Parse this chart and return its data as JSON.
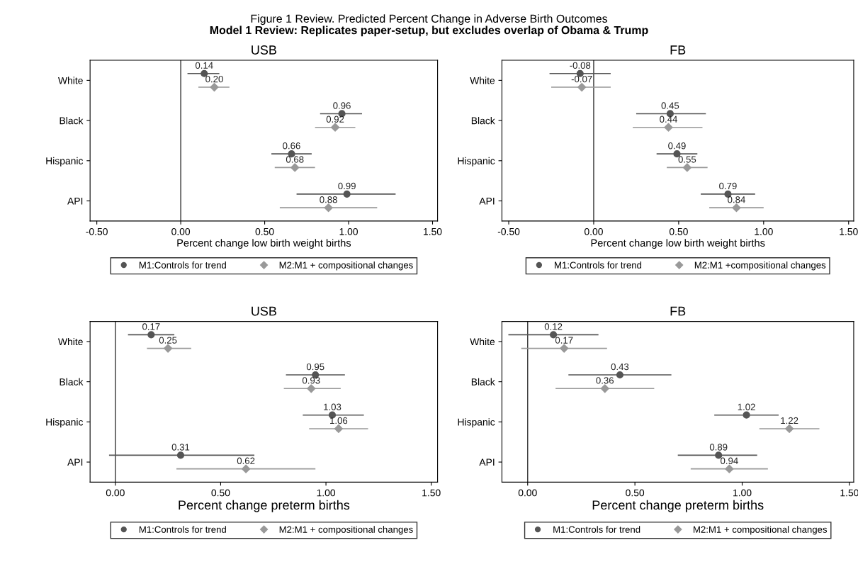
{
  "chart_data": [
    {
      "type": "scatter",
      "orientation": "horizontal",
      "title": "USB",
      "xlabel": "Percent change low birth weight births",
      "annotations": [
        "Figure 1 Review. Predicted Percent Change in Adverse Birth Outcomes",
        "Model 1 Review: Replicates paper-setup, but excludes overlap of Obama & Trump"
      ],
      "categories": [
        "White",
        "Black",
        "Hispanic",
        "API"
      ],
      "xlim": [
        -0.54,
        1.53
      ],
      "xticks": [
        {
          "value": -0.5,
          "label": "-0.50"
        },
        {
          "value": 0,
          "label": "0.00"
        },
        {
          "value": 0.5,
          "label": "0.50"
        },
        {
          "value": 1,
          "label": "1.00"
        },
        {
          "value": 1.5,
          "label": "1.50"
        }
      ],
      "ref_lines": [
        {
          "axis": "x",
          "value": 0,
          "color": "#333333"
        }
      ],
      "legend": "bottom",
      "grid": false,
      "series": [
        {
          "name": "M1:Controls for trend",
          "color": "#555555",
          "marker": "circle",
          "values": [
            0.14,
            0.96,
            0.66,
            0.99
          ],
          "value_labels": [
            "0.14",
            "0.96",
            "0.66",
            "0.99"
          ],
          "errors": [
            [
              0.04,
              0.23
            ],
            [
              0.83,
              1.08
            ],
            [
              0.54,
              0.78
            ],
            [
              0.69,
              1.28
            ]
          ]
        },
        {
          "name": "M2:M1 + compositional changes",
          "color": "#999999",
          "marker": "diamond",
          "values": [
            0.2,
            0.92,
            0.68,
            0.88
          ],
          "value_labels": [
            "0.20",
            "0.92",
            "0.68",
            "0.88"
          ],
          "errors": [
            [
              0.105,
              0.29
            ],
            [
              0.8,
              1.04
            ],
            [
              0.56,
              0.8
            ],
            [
              0.59,
              1.17
            ]
          ]
        }
      ]
    },
    {
      "type": "scatter",
      "orientation": "horizontal",
      "title": "FB",
      "xlabel": "Percent change low birth weight births",
      "categories": [
        "White",
        "Black",
        "Hispanic",
        "API"
      ],
      "xlim": [
        -0.54,
        1.53
      ],
      "xticks": [
        {
          "value": -0.5,
          "label": "-0.50"
        },
        {
          "value": 0,
          "label": "0.00"
        },
        {
          "value": 0.5,
          "label": "0.50"
        },
        {
          "value": 1,
          "label": "1.00"
        },
        {
          "value": 1.5,
          "label": "1.50"
        }
      ],
      "ref_lines": [
        {
          "axis": "x",
          "value": 0,
          "color": "#333333"
        }
      ],
      "legend": "bottom",
      "grid": false,
      "series": [
        {
          "name": "M1:Controls for trend",
          "color": "#555555",
          "marker": "circle",
          "values": [
            -0.08,
            0.45,
            0.49,
            0.79
          ],
          "value_labels": [
            "-0.08",
            "0.45",
            "0.49",
            "0.79"
          ],
          "errors": [
            [
              -0.26,
              0.1
            ],
            [
              0.25,
              0.66
            ],
            [
              0.37,
              0.61
            ],
            [
              0.63,
              0.95
            ]
          ]
        },
        {
          "name": "M2:M1 +compositional changes",
          "color": "#999999",
          "marker": "diamond",
          "values": [
            -0.07,
            0.44,
            0.55,
            0.84
          ],
          "value_labels": [
            "-0.07",
            "0.44",
            "0.55",
            "0.84"
          ],
          "errors": [
            [
              -0.25,
              0.1
            ],
            [
              0.23,
              0.64
            ],
            [
              0.43,
              0.67
            ],
            [
              0.68,
              1.0
            ]
          ]
        }
      ]
    },
    {
      "type": "scatter",
      "orientation": "horizontal",
      "title": "USB",
      "xlabel": "Percent change preterm births",
      "categories": [
        "White",
        "Black",
        "Hispanic",
        "API"
      ],
      "xlim": [
        -0.12,
        1.53
      ],
      "xticks": [
        {
          "value": 0,
          "label": "0.00"
        },
        {
          "value": 0.5,
          "label": "0.50"
        },
        {
          "value": 1,
          "label": "1.00"
        },
        {
          "value": 1.5,
          "label": "1.50"
        }
      ],
      "ref_lines": [
        {
          "axis": "x",
          "value": 0,
          "color": "#333333"
        }
      ],
      "legend": "bottom",
      "grid": false,
      "series": [
        {
          "name": "M1:Controls for trend",
          "color": "#555555",
          "marker": "circle",
          "values": [
            0.17,
            0.95,
            1.03,
            0.31
          ],
          "value_labels": [
            "0.17",
            "0.95",
            "1.03",
            "0.31"
          ],
          "errors": [
            [
              0.06,
              0.28
            ],
            [
              0.81,
              1.09
            ],
            [
              0.89,
              1.18
            ],
            [
              -0.03,
              0.66
            ]
          ]
        },
        {
          "name": "M2:M1 + compositional changes",
          "color": "#999999",
          "marker": "diamond",
          "values": [
            0.25,
            0.93,
            1.06,
            0.62
          ],
          "value_labels": [
            "0.25",
            "0.93",
            "1.06",
            "0.62"
          ],
          "errors": [
            [
              0.15,
              0.36
            ],
            [
              0.8,
              1.07
            ],
            [
              0.92,
              1.2
            ],
            [
              0.29,
              0.95
            ]
          ]
        }
      ]
    },
    {
      "type": "scatter",
      "orientation": "horizontal",
      "title": "FB",
      "xlabel": "Percent change preterm births",
      "categories": [
        "White",
        "Black",
        "Hispanic",
        "API"
      ],
      "xlim": [
        -0.12,
        1.52
      ],
      "xticks": [
        {
          "value": 0,
          "label": "0.00"
        },
        {
          "value": 0.5,
          "label": "0.50"
        },
        {
          "value": 1,
          "label": "1.00"
        },
        {
          "value": 1.5,
          "label": "1.50"
        }
      ],
      "ref_lines": [
        {
          "axis": "x",
          "value": 0,
          "color": "#333333"
        }
      ],
      "legend": "bottom",
      "grid": false,
      "series": [
        {
          "name": "M1:Controls for trend",
          "color": "#555555",
          "marker": "circle",
          "values": [
            0.12,
            0.43,
            1.02,
            0.89
          ],
          "value_labels": [
            "0.12",
            "0.43",
            "1.02",
            "0.89"
          ],
          "errors": [
            [
              -0.09,
              0.33
            ],
            [
              0.19,
              0.67
            ],
            [
              0.87,
              1.17
            ],
            [
              0.7,
              1.07
            ]
          ]
        },
        {
          "name": "M2:M1 + compositional changes",
          "color": "#999999",
          "marker": "diamond",
          "values": [
            0.17,
            0.36,
            1.22,
            0.94
          ],
          "value_labels": [
            "0.17",
            "0.36",
            "1.22",
            "0.94"
          ],
          "errors": [
            [
              -0.03,
              0.37
            ],
            [
              0.13,
              0.59
            ],
            [
              1.08,
              1.36
            ],
            [
              0.76,
              1.12
            ]
          ]
        }
      ]
    }
  ]
}
